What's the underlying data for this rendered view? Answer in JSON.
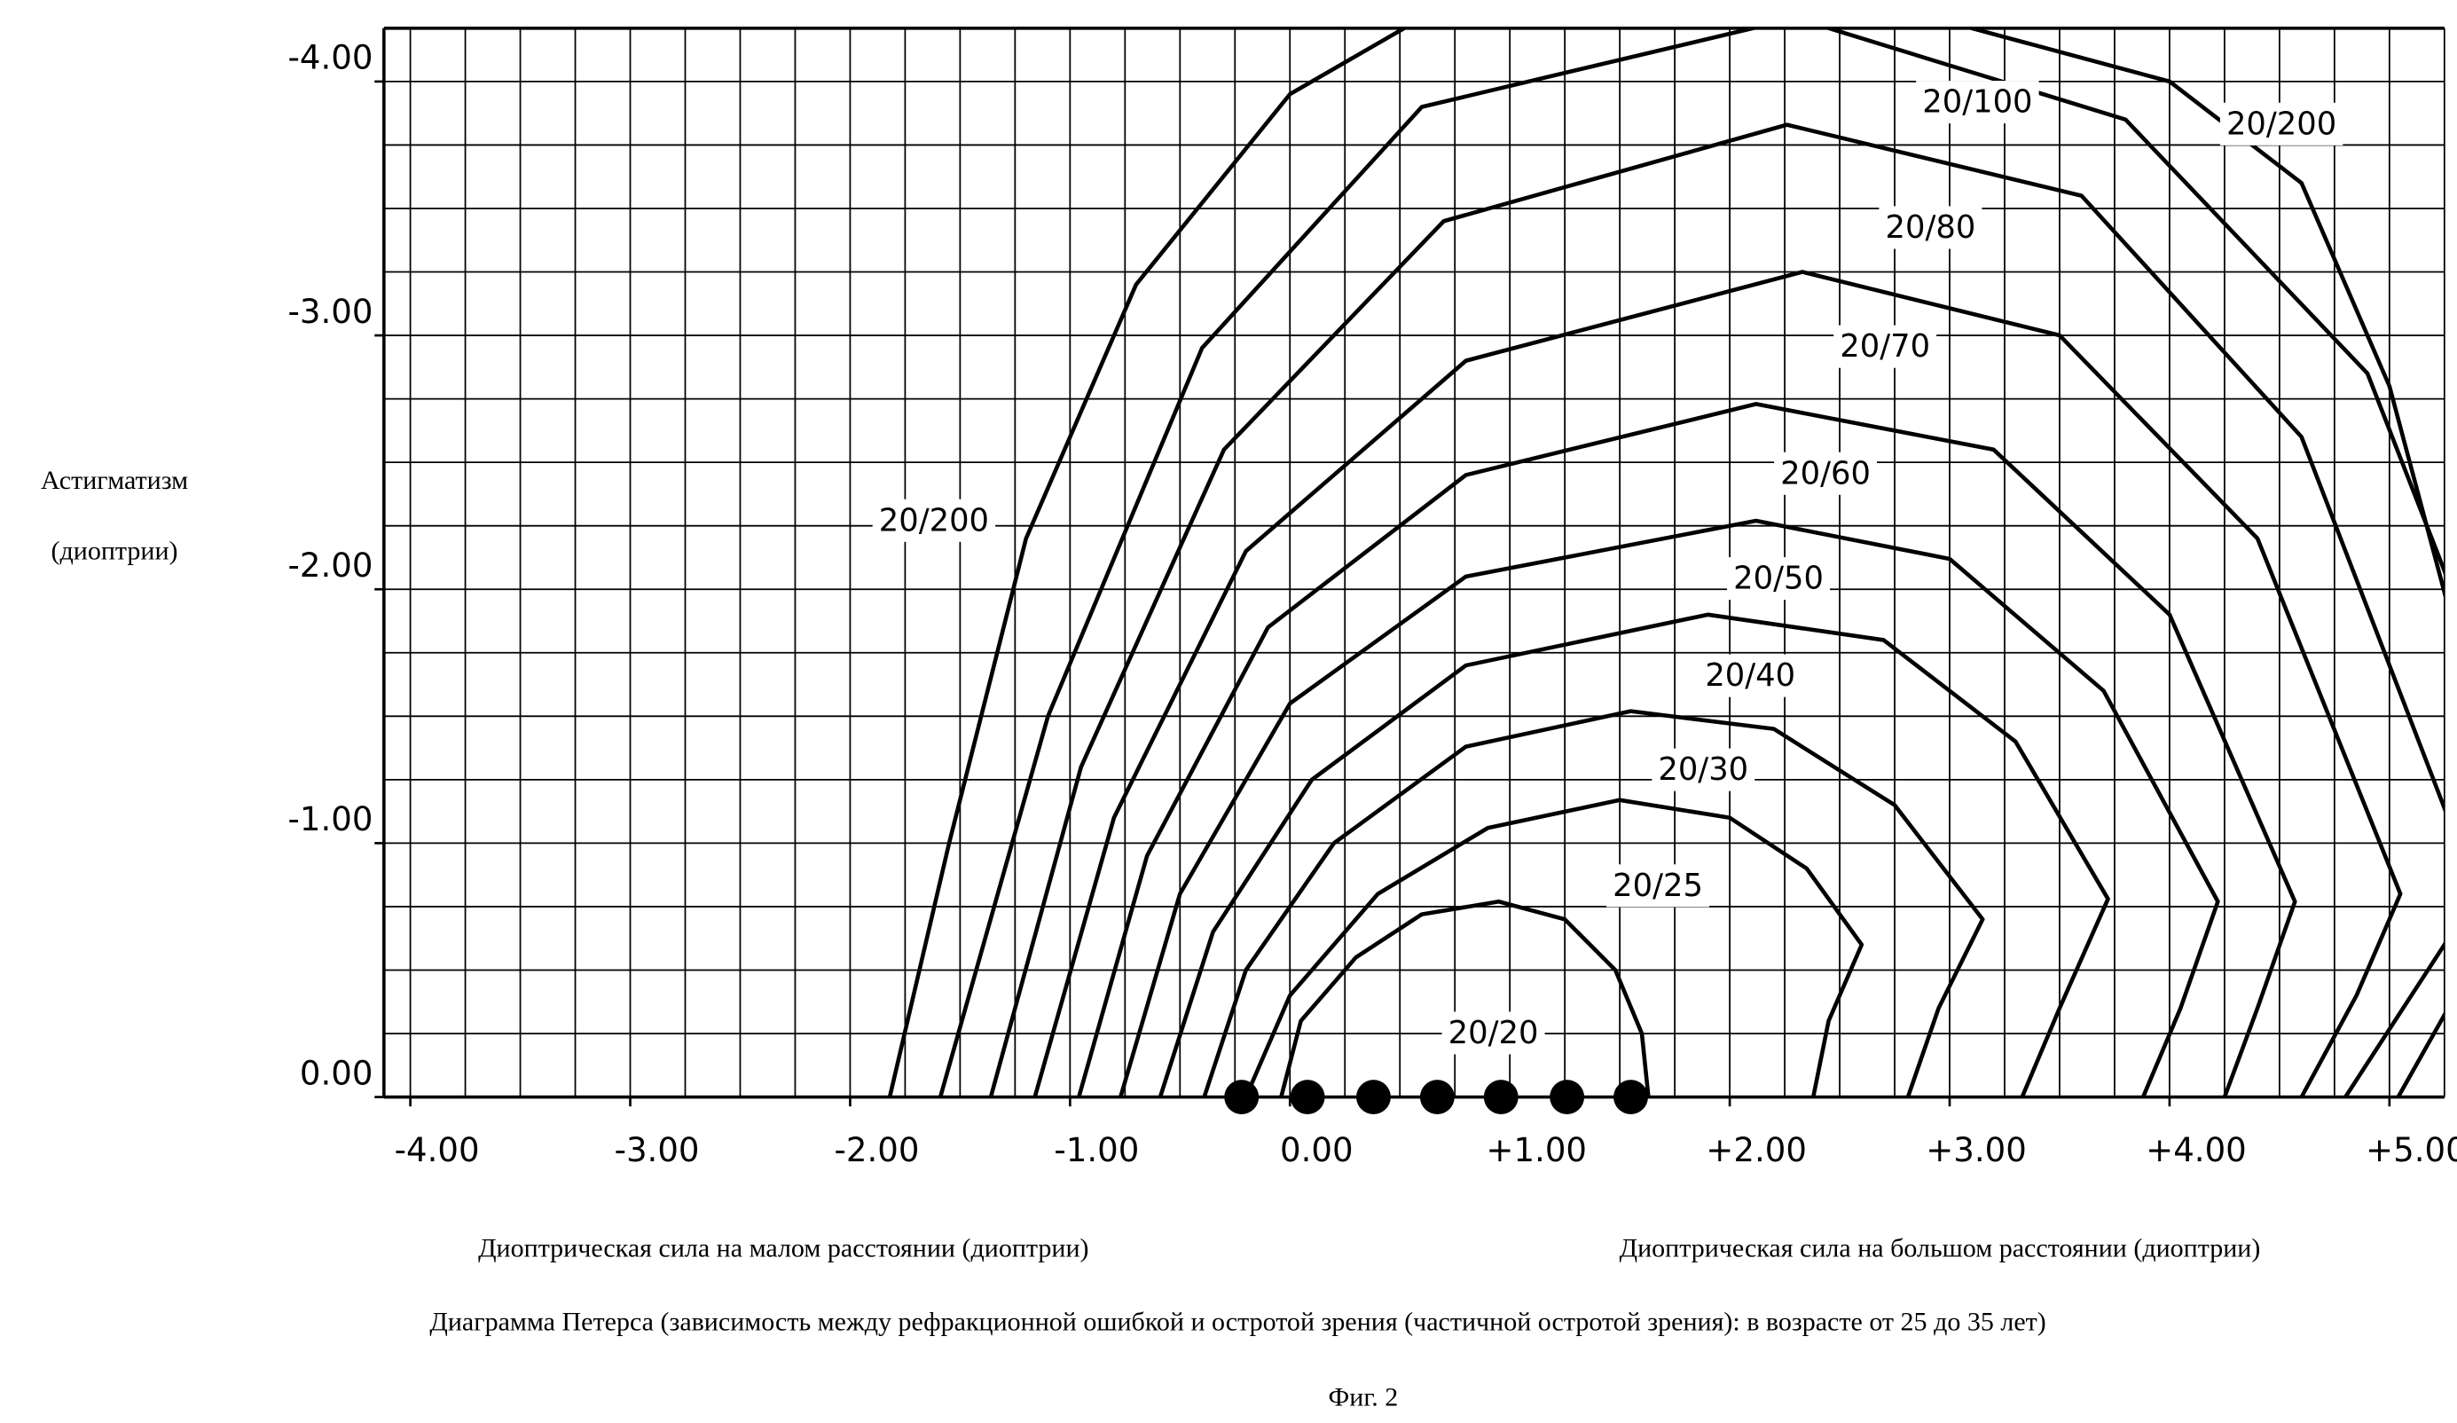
{
  "chart_data": {
    "type": "contour",
    "y_label": [
      "Астигматизм",
      "(диоптрии)"
    ],
    "x_label_left": "Диоптрическая сила на малом расстоянии (диоптрии)",
    "x_label_right": "Диоптрическая сила на большом расстоянии (диоптрии)",
    "caption": "Диаграмма Петерса (зависимость между рефракционной ошибкой и остротой зрения (частичной остротой зрения): в возрасте от 25 до 35 лет)",
    "figure_label": "Фиг. 2",
    "xlim": [
      -4.12,
      5.25
    ],
    "ylim": [
      0,
      -4.21
    ],
    "grid": true,
    "grid_step": 0.25,
    "xticks": [
      {
        "value": -4,
        "label": "-4.00"
      },
      {
        "value": -3,
        "label": "-3.00"
      },
      {
        "value": -2,
        "label": "-2.00"
      },
      {
        "value": -1,
        "label": "-1.00"
      },
      {
        "value": 0,
        "label": "0.00"
      },
      {
        "value": 1,
        "label": "+1.00"
      },
      {
        "value": 2,
        "label": "+2.00"
      },
      {
        "value": 3,
        "label": "+3.00"
      },
      {
        "value": 4,
        "label": "+4.00"
      },
      {
        "value": 5,
        "label": "+5.00"
      }
    ],
    "yticks": [
      {
        "value": 0,
        "label": "0.00"
      },
      {
        "value": -1,
        "label": "-1.00"
      },
      {
        "value": -2,
        "label": "-2.00"
      },
      {
        "value": -3,
        "label": "-3.00"
      },
      {
        "value": -4,
        "label": "-4.00"
      }
    ],
    "series": [
      {
        "name": "20/20",
        "color": "#000000",
        "x": [
          -0.04,
          0.05,
          0.3,
          0.6,
          0.95,
          1.25,
          1.48,
          1.6,
          1.63
        ],
        "y": [
          0,
          -0.3,
          -0.55,
          -0.72,
          -0.77,
          -0.7,
          -0.5,
          -0.25,
          0
        ]
      },
      {
        "name": "20/25",
        "color": "#000000",
        "x": [
          -0.2,
          0.0,
          0.4,
          0.9,
          1.5,
          2.0,
          2.35,
          2.6,
          2.45,
          2.38
        ],
        "y": [
          0,
          -0.4,
          -0.8,
          -1.06,
          -1.17,
          -1.1,
          -0.9,
          -0.6,
          -0.3,
          0
        ]
      },
      {
        "name": "20/30",
        "color": "#000000",
        "x": [
          -0.39,
          -0.2,
          0.2,
          0.8,
          1.55,
          2.2,
          2.75,
          3.15,
          2.95,
          2.81
        ],
        "y": [
          0,
          -0.5,
          -1.0,
          -1.38,
          -1.52,
          -1.45,
          -1.15,
          -0.7,
          -0.35,
          0
        ]
      },
      {
        "name": "20/40",
        "color": "#000000",
        "x": [
          -0.59,
          -0.35,
          0.1,
          0.8,
          1.9,
          2.7,
          3.3,
          3.72,
          3.5,
          3.33
        ],
        "y": [
          0,
          -0.65,
          -1.25,
          -1.7,
          -1.9,
          -1.8,
          -1.4,
          -0.78,
          -0.35,
          0
        ]
      },
      {
        "name": "20/50",
        "color": "#000000",
        "x": [
          -0.77,
          -0.5,
          0.0,
          0.8,
          2.12,
          3.0,
          3.7,
          4.22,
          4.05,
          3.88
        ],
        "y": [
          0,
          -0.8,
          -1.55,
          -2.05,
          -2.27,
          -2.12,
          -1.6,
          -0.77,
          -0.35,
          0
        ]
      },
      {
        "name": "20/60",
        "color": "#000000",
        "x": [
          -0.96,
          -0.65,
          -0.1,
          0.8,
          2.12,
          3.2,
          4.0,
          4.57,
          4.4,
          4.25
        ],
        "y": [
          0,
          -0.95,
          -1.85,
          -2.45,
          -2.73,
          -2.55,
          -1.9,
          -0.77,
          -0.35,
          0
        ]
      },
      {
        "name": "20/70",
        "color": "#000000",
        "x": [
          -1.16,
          -0.8,
          -0.2,
          0.8,
          2.33,
          3.5,
          4.4,
          5.05,
          4.85,
          4.6
        ],
        "y": [
          0,
          -1.1,
          -2.15,
          -2.9,
          -3.25,
          -3.0,
          -2.2,
          -0.8,
          -0.4,
          0
        ]
      },
      {
        "name": "20/80",
        "color": "#000000",
        "x": [
          -1.36,
          -0.95,
          -0.3,
          0.7,
          2.26,
          3.6,
          4.6,
          5.4,
          5.1,
          4.8
        ],
        "y": [
          0,
          -1.3,
          -2.55,
          -3.45,
          -3.83,
          -3.55,
          -2.6,
          -0.8,
          -0.4,
          0
        ]
      },
      {
        "name": "20/100",
        "color": "#000000",
        "x": [
          -1.59,
          -1.1,
          -0.4,
          0.6,
          2.3,
          3.8,
          4.9,
          5.8,
          5.3,
          5.04
        ],
        "y": [
          0,
          -1.5,
          -2.95,
          -3.9,
          -4.25,
          -3.85,
          -2.85,
          -0.85,
          -0.4,
          0
        ]
      },
      {
        "name": "20/200",
        "color": "#000000",
        "x": [
          -1.82,
          -1.55,
          -1.2,
          -0.7,
          0.0,
          0.6,
          1.8,
          3.1,
          4.0,
          4.6,
          5.0,
          5.4
        ],
        "y": [
          0,
          -1.0,
          -2.2,
          -3.2,
          -3.95,
          -4.25,
          -4.7,
          -4.21,
          -4.0,
          -3.6,
          -2.8,
          -1.5
        ]
      }
    ],
    "points": {
      "color": "#000000",
      "x": [
        -0.22,
        0.08,
        0.38,
        0.67,
        0.96,
        1.26,
        1.55
      ],
      "y": [
        0,
        0,
        0,
        0,
        0,
        0,
        0
      ]
    }
  }
}
